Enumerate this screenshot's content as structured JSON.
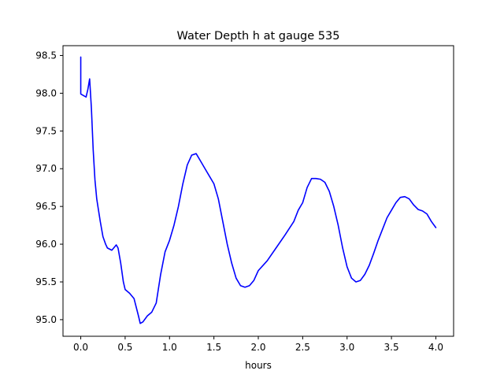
{
  "chart_data": {
    "type": "line",
    "title": "Water Depth h at gauge 535",
    "xlabel": "hours",
    "ylabel": "",
    "xlim": [
      -0.2,
      4.2
    ],
    "ylim": [
      94.78,
      98.63
    ],
    "xticks": [
      0.0,
      0.5,
      1.0,
      1.5,
      2.0,
      2.5,
      3.0,
      3.5,
      4.0
    ],
    "xtick_labels": [
      "0.0",
      "0.5",
      "1.0",
      "1.5",
      "2.0",
      "2.5",
      "3.0",
      "3.5",
      "4.0"
    ],
    "yticks": [
      95.0,
      95.5,
      96.0,
      96.5,
      97.0,
      97.5,
      98.0,
      98.5
    ],
    "ytick_labels": [
      "95.0",
      "95.5",
      "96.0",
      "96.5",
      "97.0",
      "97.5",
      "98.0",
      "98.5"
    ],
    "grid": false,
    "line_color": "#0000ff",
    "series": [
      {
        "x": [
          0.0,
          0.0,
          0.03,
          0.06,
          0.08,
          0.1,
          0.12,
          0.14,
          0.16,
          0.18,
          0.2,
          0.22,
          0.25,
          0.28,
          0.3,
          0.35,
          0.4,
          0.42,
          0.45,
          0.48,
          0.5,
          0.55,
          0.6,
          0.65,
          0.67,
          0.7,
          0.75,
          0.8,
          0.85,
          0.9,
          0.95,
          1.0,
          1.05,
          1.1,
          1.15,
          1.2,
          1.25,
          1.3,
          1.35,
          1.4,
          1.45,
          1.5,
          1.55,
          1.6,
          1.65,
          1.7,
          1.75,
          1.8,
          1.85,
          1.9,
          1.95,
          2.0,
          2.1,
          2.2,
          2.3,
          2.4,
          2.45,
          2.5,
          2.55,
          2.6,
          2.65,
          2.7,
          2.75,
          2.8,
          2.85,
          2.9,
          2.95,
          3.0,
          3.05,
          3.1,
          3.15,
          3.2,
          3.25,
          3.3,
          3.35,
          3.4,
          3.45,
          3.5,
          3.55,
          3.6,
          3.65,
          3.7,
          3.75,
          3.8,
          3.85,
          3.9,
          3.95,
          4.0
        ],
        "values": [
          98.48,
          97.99,
          97.97,
          97.95,
          98.05,
          98.19,
          97.8,
          97.25,
          96.85,
          96.6,
          96.45,
          96.3,
          96.1,
          96.0,
          95.95,
          95.92,
          95.99,
          95.95,
          95.75,
          95.5,
          95.4,
          95.35,
          95.28,
          95.05,
          94.95,
          94.97,
          95.05,
          95.1,
          95.22,
          95.6,
          95.9,
          96.05,
          96.25,
          96.5,
          96.8,
          97.05,
          97.18,
          97.2,
          97.1,
          97.0,
          96.9,
          96.8,
          96.6,
          96.3,
          96.0,
          95.75,
          95.55,
          95.45,
          95.43,
          95.45,
          95.52,
          95.65,
          95.78,
          95.95,
          96.12,
          96.3,
          96.45,
          96.55,
          96.75,
          96.87,
          96.87,
          96.86,
          96.82,
          96.7,
          96.5,
          96.25,
          95.95,
          95.7,
          95.55,
          95.5,
          95.52,
          95.6,
          95.72,
          95.88,
          96.05,
          96.2,
          96.35,
          96.45,
          96.55,
          96.62,
          96.63,
          96.6,
          96.52,
          96.46,
          96.44,
          96.4,
          96.3,
          96.22
        ]
      }
    ]
  }
}
